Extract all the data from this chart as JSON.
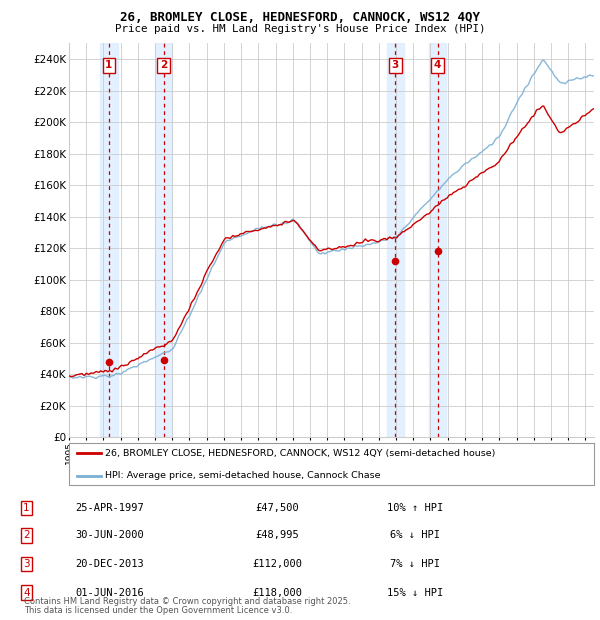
{
  "title1": "26, BROMLEY CLOSE, HEDNESFORD, CANNOCK, WS12 4QY",
  "title2": "Price paid vs. HM Land Registry's House Price Index (HPI)",
  "ylim": [
    0,
    250000
  ],
  "yticks": [
    0,
    20000,
    40000,
    60000,
    80000,
    100000,
    120000,
    140000,
    160000,
    180000,
    200000,
    220000,
    240000
  ],
  "xlim_start": 1995.0,
  "xlim_end": 2025.5,
  "legend_line1": "26, BROMLEY CLOSE, HEDNESFORD, CANNOCK, WS12 4QY (semi-detached house)",
  "legend_line2": "HPI: Average price, semi-detached house, Cannock Chase",
  "transactions": [
    {
      "num": 1,
      "date_label": "25-APR-1997",
      "price": 47500,
      "pct": "10%",
      "dir": "↑",
      "year": 1997.32
    },
    {
      "num": 2,
      "date_label": "30-JUN-2000",
      "price": 48995,
      "pct": "6%",
      "dir": "↓",
      "year": 2000.49
    },
    {
      "num": 3,
      "date_label": "20-DEC-2013",
      "price": 112000,
      "pct": "7%",
      "dir": "↓",
      "year": 2013.96
    },
    {
      "num": 4,
      "date_label": "01-JUN-2016",
      "price": 118000,
      "pct": "15%",
      "dir": "↓",
      "year": 2016.41
    }
  ],
  "footnote1": "Contains HM Land Registry data © Crown copyright and database right 2025.",
  "footnote2": "This data is licensed under the Open Government Licence v3.0.",
  "hpi_color": "#7bafd4",
  "price_color": "#cc0000",
  "bg_color": "#ffffff",
  "grid_color": "#cccccc",
  "highlight_bg": "#ddeeff"
}
